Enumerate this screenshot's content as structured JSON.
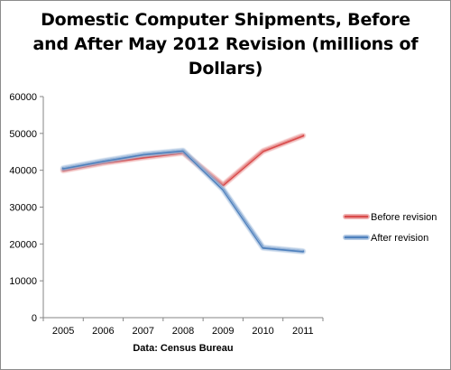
{
  "chart_data": {
    "type": "line",
    "title_lines": [
      "Domestic Computer Shipments, Before",
      "and After May 2012 Revision (millions of",
      "Dollars)"
    ],
    "source": "Data: Census Bureau",
    "x": [
      "2005",
      "2006",
      "2007",
      "2008",
      "2009",
      "2010",
      "2011"
    ],
    "ylim": [
      0,
      60000
    ],
    "yticks": [
      "0",
      "10000",
      "20000",
      "30000",
      "40000",
      "50000",
      "60000"
    ],
    "ytick_values": [
      0,
      10000,
      20000,
      30000,
      40000,
      50000,
      60000
    ],
    "grid": false,
    "legend_position": "right",
    "series": [
      {
        "name": "Before revision",
        "color": "#d94b4b",
        "values": [
          40000,
          42000,
          43500,
          44800,
          36000,
          45200,
          49400
        ]
      },
      {
        "name": "After revision",
        "color": "#4f81bd",
        "values": [
          40500,
          42500,
          44300,
          45300,
          34800,
          19000,
          18000
        ]
      }
    ]
  }
}
